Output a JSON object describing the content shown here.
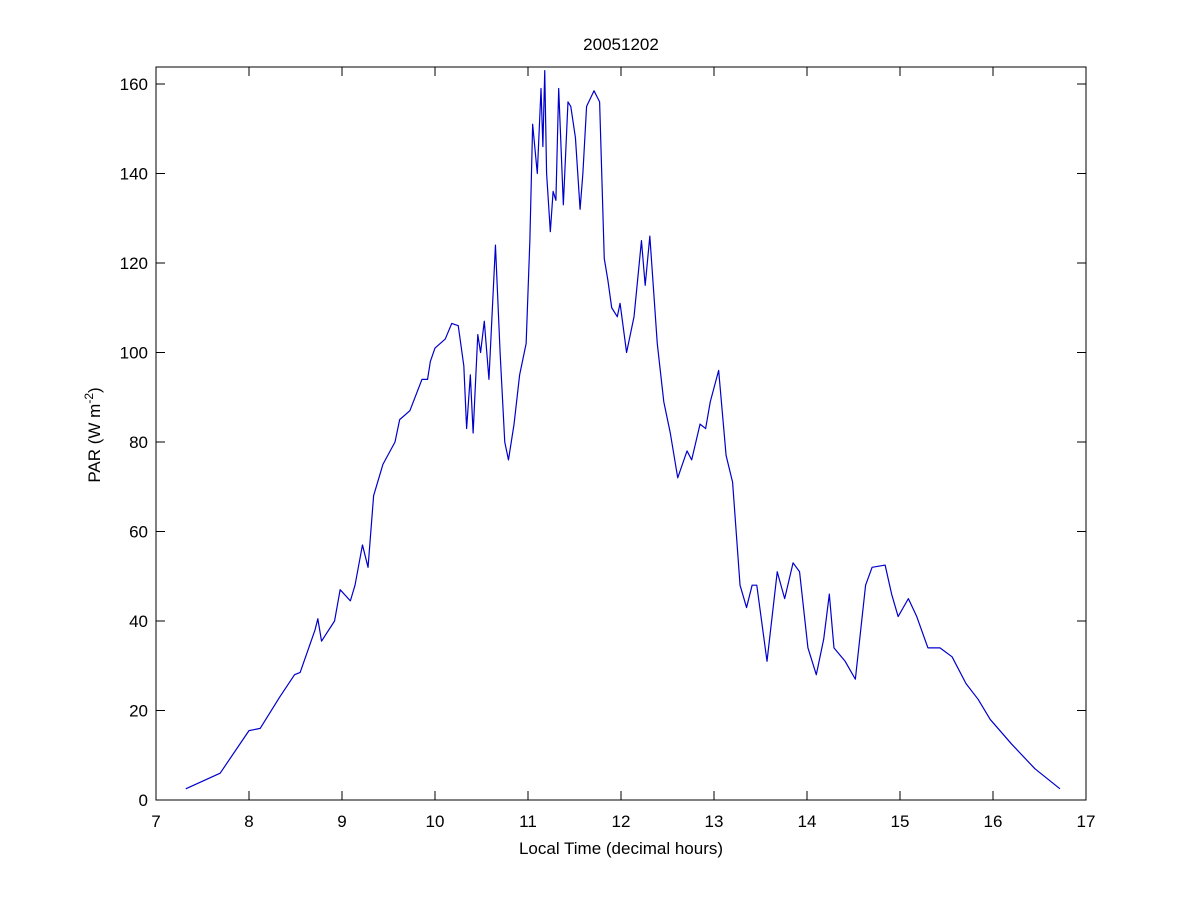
{
  "chart_data": {
    "type": "line",
    "title": "20051202",
    "x_label": "Local Time (decimal hours)",
    "y_label": {
      "text": "PAR (W m",
      "superscript": "-2",
      "suffix": ")"
    },
    "xlim": [
      7,
      17
    ],
    "xticks": [
      7,
      8,
      9,
      10,
      11,
      12,
      13,
      14,
      15,
      16,
      17
    ],
    "ylim": [
      0,
      163.8
    ],
    "yticks": [
      0,
      20,
      40,
      60,
      80,
      100,
      120,
      140,
      160
    ],
    "grid": false,
    "series": [
      {
        "color": "#0000cc",
        "x": [
          7.32,
          7.69,
          8.0,
          8.12,
          8.33,
          8.49,
          8.55,
          8.71,
          8.74,
          8.78,
          8.92,
          8.98,
          9.09,
          9.14,
          9.22,
          9.28,
          9.34,
          9.44,
          9.57,
          9.62,
          9.73,
          9.86,
          9.92,
          9.95,
          10.0,
          10.11,
          10.18,
          10.25,
          10.31,
          10.34,
          10.38,
          10.41,
          10.46,
          10.49,
          10.53,
          10.58,
          10.65,
          10.7,
          10.75,
          10.79,
          10.85,
          10.91,
          10.98,
          11.02,
          11.05,
          11.1,
          11.14,
          11.16,
          11.18,
          11.2,
          11.24,
          11.27,
          11.3,
          11.33,
          11.38,
          11.43,
          11.46,
          11.51,
          11.56,
          11.59,
          11.63,
          11.71,
          11.77,
          11.82,
          11.86,
          11.9,
          11.96,
          11.99,
          12.06,
          12.14,
          12.22,
          12.26,
          12.31,
          12.39,
          12.46,
          12.53,
          12.61,
          12.71,
          12.76,
          12.85,
          12.91,
          12.96,
          13.05,
          13.13,
          13.2,
          13.28,
          13.35,
          13.41,
          13.46,
          13.57,
          13.68,
          13.76,
          13.85,
          13.92,
          14.01,
          14.1,
          14.18,
          14.24,
          14.29,
          14.41,
          14.52,
          14.63,
          14.7,
          14.84,
          14.91,
          14.98,
          15.09,
          15.18,
          15.3,
          15.43,
          15.56,
          15.71,
          15.84,
          15.97,
          16.2,
          16.45,
          16.72
        ],
        "values": [
          2.5,
          6,
          15.5,
          16,
          23,
          28,
          28.5,
          38,
          40.5,
          35.5,
          40,
          47,
          44.5,
          48,
          57,
          52,
          68,
          75,
          80,
          85,
          87,
          94,
          94,
          98,
          101,
          103,
          106.5,
          106,
          97,
          83,
          95,
          82,
          104,
          100,
          107,
          94,
          124,
          100,
          80,
          76,
          84,
          95,
          102,
          125,
          151,
          140,
          159,
          146,
          163,
          140,
          127,
          136,
          134,
          159,
          133,
          156,
          155,
          148,
          132,
          140,
          155,
          158.5,
          156,
          121,
          116,
          110,
          108,
          111,
          100,
          108,
          125,
          115,
          126,
          102,
          89,
          82,
          72,
          78,
          76,
          84,
          83,
          89,
          96,
          77,
          71,
          48,
          43,
          48,
          48,
          31,
          51,
          45,
          53,
          51,
          34,
          28,
          36,
          46,
          34,
          31,
          27,
          48,
          52,
          52.5,
          46,
          41,
          45,
          41,
          34,
          34,
          32,
          26,
          22.5,
          18,
          12.5,
          7,
          2.5
        ]
      }
    ]
  }
}
